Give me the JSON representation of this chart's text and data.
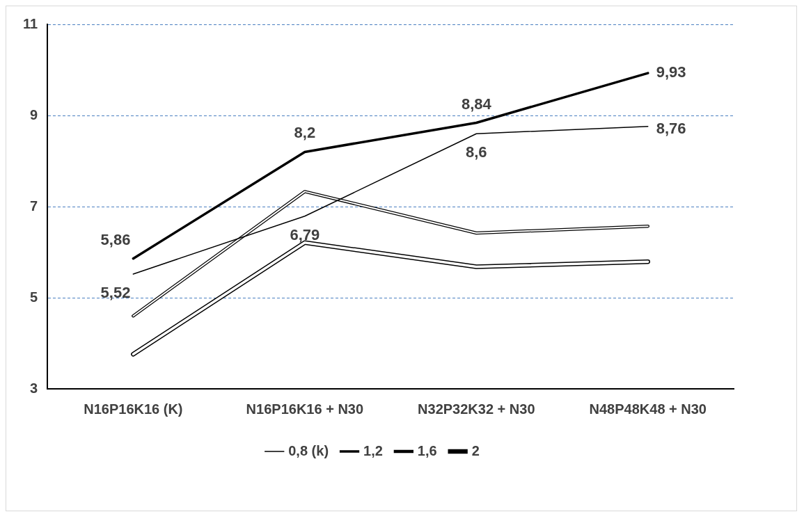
{
  "chart_data": {
    "type": "line",
    "categories": [
      "N16P16K16 (K)",
      "N16P16K16 + N30",
      "N32P32K32 + N30",
      "N48P48K48 + N30"
    ],
    "series": [
      {
        "name": "0,8 (k)",
        "color": "#000000",
        "values": [
          5.52,
          6.79,
          8.6,
          8.76
        ],
        "value_labels": [
          "5,52",
          "6,79",
          "8,6",
          "8,76"
        ]
      },
      {
        "name": "1,2",
        "color": "#000000",
        "values": [
          5.86,
          8.2,
          8.84,
          9.93
        ],
        "value_labels": [
          "5,86",
          "8,2",
          "8,84",
          "9,93"
        ]
      },
      {
        "name": "1,6",
        "color": "#000000",
        "values": [
          4.6,
          7.33,
          6.42,
          6.57
        ]
      },
      {
        "name": "2",
        "color": "#000000",
        "values": [
          3.76,
          6.21,
          5.68,
          5.79
        ]
      }
    ],
    "ylim": [
      3,
      11
    ],
    "yticks": [
      3,
      5,
      7,
      9,
      11
    ],
    "grid": "y",
    "legend": "bottom",
    "marker": "none"
  }
}
